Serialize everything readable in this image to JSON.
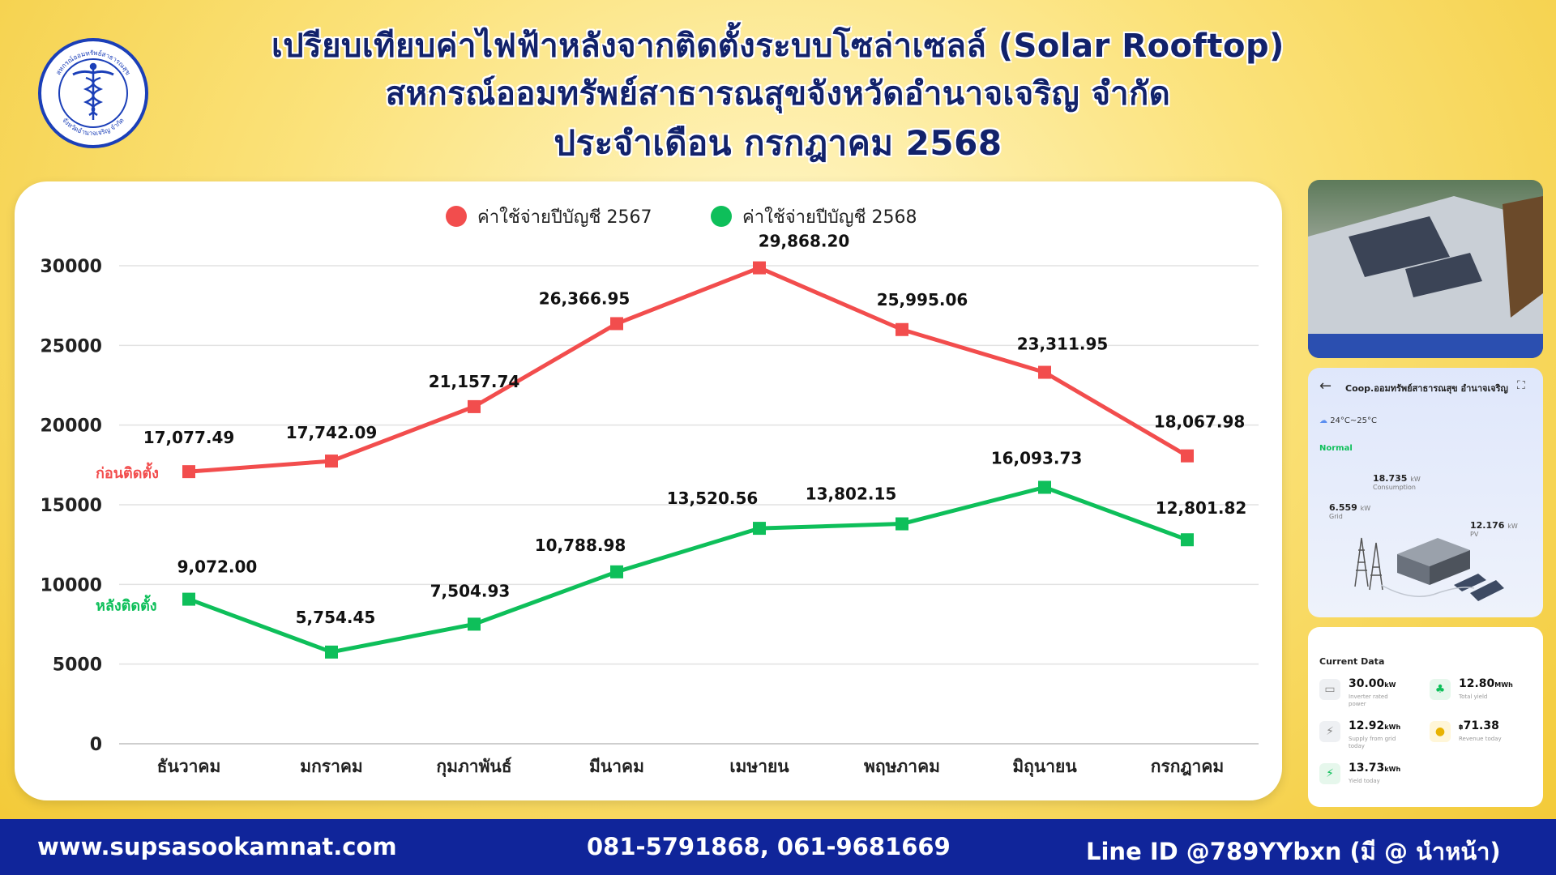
{
  "header": {
    "title_line1": "เปรียบเทียบค่าไฟฟ้าหลังจากติดตั้งระบบโซล่าเซลล์ (Solar Rooftop)",
    "title_line2": "สหกรณ์ออมทรัพย์สาธารณสุขจังหวัดอำนาจเจริญ จำกัด",
    "title_line3": "ประจำเดือน กรกฎาคม 2568",
    "logo_text_top": "สหกรณ์ออมทรัพย์สาธารณสุข",
    "logo_text_bottom": "จังหวัดอำนาจเจริญ จำกัด"
  },
  "chart_data": {
    "type": "line",
    "categories": [
      "ธันวาคม",
      "มกราคม",
      "กุมภาพันธ์",
      "มีนาคม",
      "เมษายน",
      "พฤษภาคม",
      "มิถุนายน",
      "กรกฎาคม"
    ],
    "series": [
      {
        "name": "ค่าใช้จ่ายปีบัญชี 2567",
        "color": "#f24d4d",
        "values": [
          17077.49,
          17742.09,
          21157.74,
          26366.95,
          29868.2,
          25995.06,
          23311.95,
          18067.98
        ],
        "labels": [
          "17,077.49",
          "17,742.09",
          "21,157.74",
          "26,366.95",
          "29,868.20",
          "25,995.06",
          "23,311.95",
          "18,067.98"
        ],
        "side_label": "ก่อนติดตั้ง"
      },
      {
        "name": "ค่าใช้จ่ายปีบัญชี 2568",
        "color": "#0ebf5a",
        "values": [
          9072.0,
          5754.45,
          7504.93,
          10788.98,
          13520.56,
          13802.15,
          16093.73,
          12801.82
        ],
        "labels": [
          "9,072.00",
          "5,754.45",
          "7,504.93",
          "10,788.98",
          "13,520.56",
          "13,802.15",
          "16,093.73",
          "12,801.82"
        ],
        "side_label": "หลังติดตั้ง"
      }
    ],
    "yticks": [
      "0",
      "5000",
      "10000",
      "15000",
      "20000",
      "25000",
      "30000"
    ],
    "ylim": [
      0,
      30000
    ],
    "grid": true,
    "legend_position": "top-center"
  },
  "app_screen": {
    "header": "Coop.ออมทรัพย์สาธารณสุข อำนาจเจริญ",
    "weather": "24°C~25°C",
    "status": "Normal",
    "consumption_value": "18.735",
    "consumption_unit": "kW",
    "consumption_label": "Consumption",
    "grid_value": "6.559",
    "grid_unit": "kW",
    "grid_label": "Grid",
    "pv_value": "12.176",
    "pv_unit": "kW",
    "pv_label": "PV"
  },
  "current_data": {
    "title": "Current Data",
    "items": [
      {
        "value": "30.00",
        "unit": "kW",
        "label": "Inverter rated power"
      },
      {
        "value": "12.80",
        "unit": "MWh",
        "label": "Total yield"
      },
      {
        "value": "12.92",
        "unit": "kWh",
        "label": "Supply from grid today"
      },
      {
        "value": "71.38",
        "unit": "฿",
        "label": "Revenue today"
      },
      {
        "value": "13.73",
        "unit": "kWh",
        "label": "Yield today"
      }
    ]
  },
  "footer": {
    "website": "www.supsasookamnat.com",
    "phones": "081-5791868, 061-9681669",
    "line_id": "Line ID @789YYbxn (มี @ นำหน้า)"
  }
}
